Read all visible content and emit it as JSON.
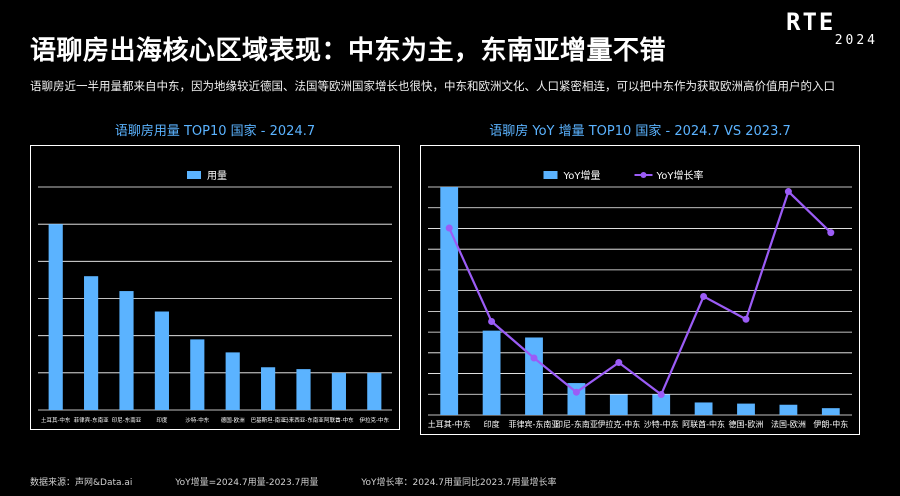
{
  "header": {
    "title": "语聊房出海核心区域表现：中东为主，东南亚增量不错",
    "subtitle": "语聊房近一半用量都来自中东，因为地缘较近德国、法国等欧洲国家增长也很快，中东和欧洲文化、人口紧密相连，可以把中东作为获取欧洲高价值用户的入口"
  },
  "logo": {
    "text": "RTE",
    "year": "2024"
  },
  "footer": {
    "source": "数据来源：声网&Data.ai",
    "note1": "YoY增量=2024.7用量-2023.7用量",
    "note2": "YoY增长率：2024.7用量同比2023.7用量增长率"
  },
  "colors": {
    "bar": "#5bb3ff",
    "line": "#9b5cf6",
    "grid": "#ffffff",
    "title": "#5bb3ff"
  },
  "chart_data": [
    {
      "type": "bar",
      "title": "语聊房用量 TOP10 国家 - 2024.7",
      "categories": [
        "土耳其-中东",
        "菲律宾-东南亚",
        "印尼-东南亚",
        "印度",
        "沙特-中东",
        "德国-欧洲",
        "巴基斯坦-南亚",
        "马来西亚-东南亚",
        "阿联酋-中东",
        "伊拉克-中东"
      ],
      "series": [
        {
          "name": "用量",
          "values": [
            100,
            72,
            64,
            53,
            38,
            31,
            23,
            22,
            20,
            20
          ]
        }
      ],
      "ylim": [
        0,
        120
      ],
      "grid": true,
      "legend": "top-center"
    },
    {
      "type": "bar+line",
      "title": "语聊房 YoY 增量 TOP10 国家 - 2024.7 VS 2023.7",
      "categories": [
        "土耳其-中东",
        "印度",
        "菲律宾-东南亚",
        "印尼-东南亚",
        "伊拉克-中东",
        "沙特-中东",
        "阿联酋-中东",
        "德国-欧洲",
        "法国-欧洲",
        "伊朗-中东"
      ],
      "series": [
        {
          "name": "YoY增量",
          "type": "bar",
          "values": [
            100,
            37,
            34,
            14,
            9,
            9,
            5.5,
            5,
            4.5,
            3
          ]
        },
        {
          "name": "YoY增长率",
          "type": "line",
          "values": [
            82,
            41,
            25,
            10,
            23,
            9,
            52,
            42,
            98,
            80
          ]
        }
      ],
      "ylim": [
        0,
        100
      ],
      "grid": true,
      "legend": "top-center"
    }
  ]
}
